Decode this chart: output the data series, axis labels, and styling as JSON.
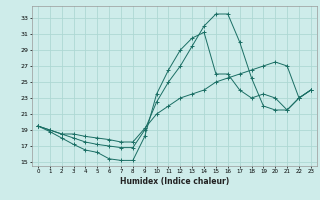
{
  "xlabel": "Humidex (Indice chaleur)",
  "bg_color": "#ceecea",
  "grid_color": "#aed8d4",
  "line_color": "#1a6e64",
  "xlim": [
    -0.5,
    23.5
  ],
  "ylim": [
    14.5,
    34.5
  ],
  "xticks": [
    0,
    1,
    2,
    3,
    4,
    5,
    6,
    7,
    8,
    9,
    10,
    11,
    12,
    13,
    14,
    15,
    16,
    17,
    18,
    19,
    20,
    21,
    22,
    23
  ],
  "yticks": [
    15,
    17,
    19,
    21,
    23,
    25,
    27,
    29,
    31,
    33
  ],
  "line1_x": [
    0,
    1,
    2,
    3,
    4,
    5,
    6,
    7,
    8,
    9,
    10,
    11,
    12,
    13,
    14,
    15,
    16,
    17,
    18,
    19,
    20,
    21,
    22,
    23
  ],
  "line1_y": [
    19.5,
    18.8,
    18.0,
    17.2,
    16.5,
    16.2,
    15.4,
    15.2,
    15.2,
    18.2,
    23.5,
    26.5,
    29.0,
    30.5,
    31.2,
    26.0,
    26.0,
    24.0,
    23.0,
    23.5,
    23.0,
    21.5,
    23.0,
    24.0
  ],
  "line2_x": [
    0,
    1,
    2,
    3,
    4,
    5,
    6,
    7,
    8,
    9,
    10,
    11,
    12,
    13,
    14,
    15,
    16,
    17,
    18,
    19,
    20,
    21,
    22,
    23
  ],
  "line2_y": [
    19.5,
    19.0,
    18.5,
    18.0,
    17.5,
    17.2,
    17.0,
    16.8,
    16.8,
    19.0,
    22.5,
    25.0,
    27.0,
    29.5,
    32.0,
    33.5,
    33.5,
    30.0,
    25.5,
    22.0,
    21.5,
    21.5,
    23.0,
    24.0
  ],
  "line3_x": [
    0,
    1,
    2,
    3,
    4,
    5,
    6,
    7,
    8,
    9,
    10,
    11,
    12,
    13,
    14,
    15,
    16,
    17,
    18,
    19,
    20,
    21,
    22,
    23
  ],
  "line3_y": [
    19.5,
    19.0,
    18.5,
    18.5,
    18.2,
    18.0,
    17.8,
    17.5,
    17.5,
    19.2,
    21.0,
    22.0,
    23.0,
    23.5,
    24.0,
    25.0,
    25.5,
    26.0,
    26.5,
    27.0,
    27.5,
    27.0,
    23.0,
    24.0
  ]
}
